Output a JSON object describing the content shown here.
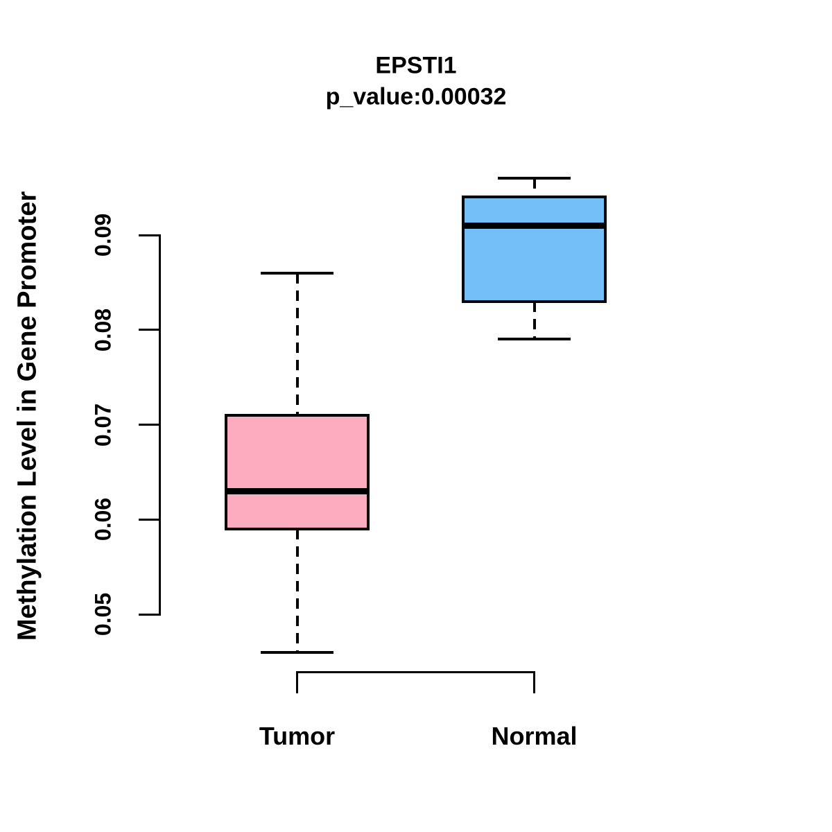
{
  "chart_data": {
    "type": "boxplot",
    "title": "EPSTI1",
    "subtitle": "p_value:0.00032",
    "ylabel": "Methylation Level in Gene Promoter",
    "xlabel": "",
    "categories": [
      "Tumor",
      "Normal"
    ],
    "y_ticks": [
      0.05,
      0.06,
      0.07,
      0.08,
      0.09
    ],
    "y_tick_labels": [
      "0.05",
      "0.06",
      "0.07",
      "0.08",
      "0.09"
    ],
    "ylim": [
      0.044,
      0.098
    ],
    "grid": false,
    "legend": false,
    "whisker_line_style": "dashed",
    "series": [
      {
        "name": "Tumor",
        "color": "#FDACBF",
        "lower_whisker": 0.046,
        "q1": 0.059,
        "median": 0.063,
        "q3": 0.071,
        "upper_whisker": 0.086
      },
      {
        "name": "Normal",
        "color": "#73BFF7",
        "lower_whisker": 0.079,
        "q1": 0.083,
        "median": 0.091,
        "q3": 0.094,
        "upper_whisker": 0.096
      }
    ]
  },
  "colors": {
    "tumor_fill": "#FDACBF",
    "normal_fill": "#73BFF7",
    "line": "#000000",
    "background": "#FFFFFF"
  }
}
